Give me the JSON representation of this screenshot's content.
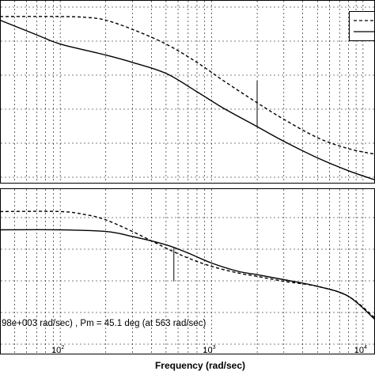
{
  "chart_data": [
    {
      "type": "line",
      "panel": "magnitude",
      "xscale": "log",
      "xlim": [
        40,
        12000
      ],
      "ylim": [
        0,
        1
      ],
      "grid": true,
      "legend": "top-right",
      "legend_entries": [
        {
          "style": "dashed",
          "label": ""
        },
        {
          "style": "solid",
          "label": ""
        }
      ],
      "series": [
        {
          "style": "dashed",
          "x": [
            40,
            100,
            150,
            200,
            300,
            500,
            800,
            1200,
            2000,
            3000,
            5000,
            8000,
            12000
          ],
          "y": [
            0.91,
            0.91,
            0.905,
            0.89,
            0.84,
            0.76,
            0.66,
            0.56,
            0.44,
            0.35,
            0.25,
            0.19,
            0.16
          ]
        },
        {
          "style": "solid",
          "x": [
            40,
            70,
            100,
            200,
            300,
            500,
            800,
            1200,
            2000,
            3000,
            5000,
            8000,
            12000
          ],
          "y": [
            0.89,
            0.81,
            0.76,
            0.7,
            0.66,
            0.6,
            0.5,
            0.41,
            0.31,
            0.23,
            0.14,
            0.07,
            0.02
          ]
        }
      ],
      "markers": [
        {
          "x": 1998,
          "y_from": 0.31,
          "y_to": 0.56
        }
      ]
    },
    {
      "type": "line",
      "panel": "phase",
      "xscale": "log",
      "xlim": [
        40,
        12000
      ],
      "ylim": [
        0,
        1
      ],
      "grid": true,
      "series": [
        {
          "style": "dashed",
          "x": [
            40,
            100,
            150,
            200,
            300,
            500,
            700,
            1000,
            1500,
            2000,
            3000,
            5000,
            8000,
            12000
          ],
          "y": [
            0.86,
            0.86,
            0.84,
            0.81,
            0.74,
            0.64,
            0.58,
            0.53,
            0.49,
            0.47,
            0.44,
            0.41,
            0.35,
            0.22
          ]
        },
        {
          "style": "solid",
          "x": [
            40,
            100,
            200,
            300,
            500,
            700,
            1000,
            1500,
            2000,
            3000,
            5000,
            8000,
            12000
          ],
          "y": [
            0.75,
            0.75,
            0.74,
            0.71,
            0.66,
            0.61,
            0.55,
            0.5,
            0.48,
            0.45,
            0.41,
            0.35,
            0.21
          ]
        }
      ],
      "markers": [
        {
          "x": 563,
          "y_from": 0.44,
          "y_to": 0.64
        }
      ]
    }
  ],
  "annotation": "98e+003 rad/sec) ,  Pm = 45.1 deg (at 563 rad/sec)",
  "xlabel": "Frequency  (rad/sec)",
  "x_ticks": [
    {
      "value": 100,
      "base": "10",
      "exp": "2"
    },
    {
      "value": 1000,
      "base": "10",
      "exp": "3"
    },
    {
      "value": 10000,
      "base": "10",
      "exp": "4"
    }
  ],
  "colors": {
    "line": "#000000",
    "grid": "#000000",
    "background": "#ffffff"
  }
}
